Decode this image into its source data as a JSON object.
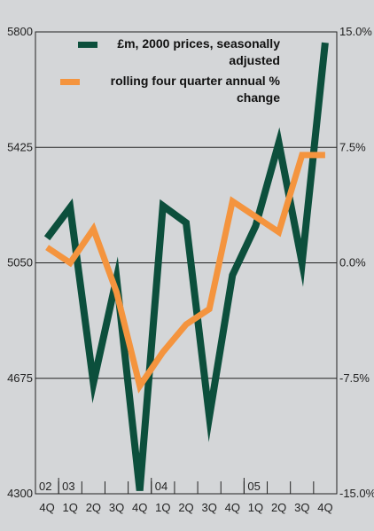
{
  "chart_data": {
    "type": "line",
    "categories": [
      "4Q",
      "1Q",
      "2Q",
      "3Q",
      "4Q",
      "1Q",
      "2Q",
      "3Q",
      "4Q",
      "1Q",
      "2Q",
      "3Q",
      "4Q"
    ],
    "year_labels": [
      {
        "label": "02",
        "start_index": 0
      },
      {
        "label": "03",
        "start_index": 1
      },
      {
        "label": "04",
        "start_index": 5
      },
      {
        "label": "05",
        "start_index": 9
      }
    ],
    "left_axis": {
      "ylim": [
        4300,
        5800
      ],
      "ticks": [
        "4300",
        "4675",
        "5050",
        "5425",
        "5800"
      ],
      "tick_values": [
        4300,
        4675,
        5050,
        5425,
        5800
      ]
    },
    "right_axis": {
      "ylim": [
        -15.0,
        15.0
      ],
      "ticks": [
        "-15.0%",
        "-7.5%",
        "0.0%",
        "7.5%",
        "15.0%"
      ],
      "tick_values": [
        -15,
        -7.5,
        0,
        7.5,
        15
      ]
    },
    "gridlines": true,
    "series": [
      {
        "name": "£m, 2000 prices, seasonally adjusted",
        "legend_lines": [
          "£m, 2000 prices, seasonally",
          "adjusted"
        ],
        "axis": "left",
        "color": "#0c4f3c",
        "values": [
          5130,
          5230,
          4660,
          5000,
          4310,
          5235,
          5180,
          4550,
          5010,
          5170,
          5440,
          5050,
          5765
        ]
      },
      {
        "name": "rolling four quarter annual % change",
        "legend_lines": [
          "rolling four quarter annual %",
          "change"
        ],
        "axis": "right",
        "color": "#f4943e",
        "values": [
          1.0,
          0.0,
          2.2,
          -1.9,
          -8.0,
          -5.8,
          -4.0,
          -3.0,
          4.0,
          3.0,
          2.0,
          7.0,
          7.0
        ]
      }
    ],
    "legend_position": "top-right"
  }
}
